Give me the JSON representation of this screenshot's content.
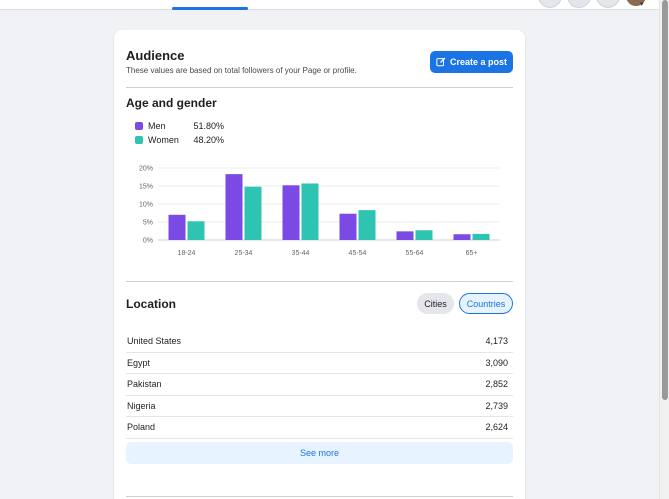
{
  "audience": {
    "title": "Audience",
    "subtitle": "These values are based on total followers of your Page or profile.",
    "create_post_label": "Create a post"
  },
  "age_gender": {
    "title": "Age and gender",
    "legend": [
      {
        "name": "Men",
        "value": "51.80%",
        "color": "#7b49e3"
      },
      {
        "name": "Women",
        "value": "48.20%",
        "color": "#2ec4b1"
      }
    ]
  },
  "chart_data": {
    "type": "bar",
    "categories": [
      "18-24",
      "25-34",
      "35-44",
      "45-54",
      "55-64",
      "65+"
    ],
    "series": [
      {
        "name": "Men",
        "values": [
          7.0,
          18.3,
          15.2,
          7.3,
          2.4,
          1.6
        ],
        "color": "#7b49e3"
      },
      {
        "name": "Women",
        "values": [
          5.2,
          14.8,
          15.7,
          8.3,
          2.7,
          1.7
        ],
        "color": "#2ec4b1"
      }
    ],
    "yticks": [
      "20%",
      "15%",
      "10%",
      "5%",
      "0%"
    ],
    "ylim": [
      0,
      20
    ],
    "grid": true
  },
  "location": {
    "title": "Location",
    "cities_label": "Cities",
    "countries_label": "Countries",
    "rows": [
      {
        "country": "United States",
        "count": "4,173"
      },
      {
        "country": "Egypt",
        "count": "3,090"
      },
      {
        "country": "Pakistan",
        "count": "2,852"
      },
      {
        "country": "Nigeria",
        "count": "2,739"
      },
      {
        "country": "Poland",
        "count": "2,624"
      }
    ],
    "see_more_label": "See more"
  },
  "icons": {
    "create_post": "edit-icon",
    "profile": "avatar"
  }
}
